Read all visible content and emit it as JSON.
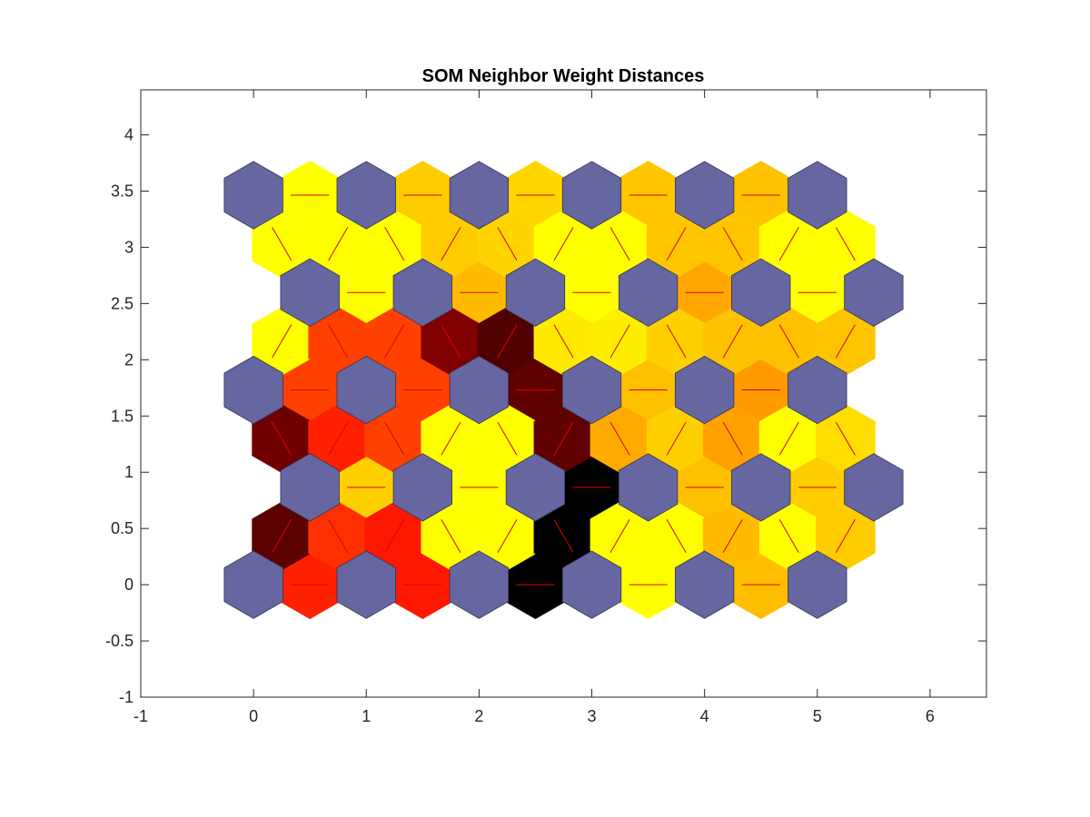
{
  "chart_data": {
    "type": "heatmap",
    "title": "SOM Neighbor Weight Distances",
    "xlabel": "",
    "ylabel": "",
    "xlim": [
      -1,
      6.5
    ],
    "ylim": [
      -1,
      4.4
    ],
    "x_ticks": [
      -1,
      0,
      1,
      2,
      3,
      4,
      5,
      6
    ],
    "x_tick_labels": [
      "-1",
      "0",
      "1",
      "2",
      "3",
      "4",
      "5",
      "6"
    ],
    "y_ticks": [
      -1,
      -0.5,
      0,
      0.5,
      1,
      1.5,
      2,
      2.5,
      3,
      3.5,
      4
    ],
    "y_tick_labels": [
      "-1",
      "-0.5",
      "0",
      "0.5",
      "1",
      "1.5",
      "2",
      "2.5",
      "3",
      "3.5",
      "4"
    ],
    "grid": false,
    "colormap": "hot",
    "neuron_color": "#6666a0",
    "connection_line_color": "#e00000",
    "neurons": [
      [
        0,
        0
      ],
      [
        1,
        0
      ],
      [
        2,
        0
      ],
      [
        3,
        0
      ],
      [
        4,
        0
      ],
      [
        5,
        0
      ],
      [
        0.5,
        0.866
      ],
      [
        1.5,
        0.866
      ],
      [
        2.5,
        0.866
      ],
      [
        3.5,
        0.866
      ],
      [
        4.5,
        0.866
      ],
      [
        5.5,
        0.866
      ],
      [
        0,
        1.732
      ],
      [
        1,
        1.732
      ],
      [
        2,
        1.732
      ],
      [
        3,
        1.732
      ],
      [
        4,
        1.732
      ],
      [
        5,
        1.732
      ],
      [
        0.5,
        2.598
      ],
      [
        1.5,
        2.598
      ],
      [
        2.5,
        2.598
      ],
      [
        3.5,
        2.598
      ],
      [
        4.5,
        2.598
      ],
      [
        5.5,
        2.598
      ],
      [
        0,
        3.464
      ],
      [
        1,
        3.464
      ],
      [
        2,
        3.464
      ],
      [
        3,
        3.464
      ],
      [
        4,
        3.464
      ],
      [
        5,
        3.464
      ]
    ],
    "neighbor_distances": [
      {
        "x": 0.5,
        "y": 0.0,
        "color": "#ff2000"
      },
      {
        "x": 1.5,
        "y": 0.0,
        "color": "#ff1800"
      },
      {
        "x": 2.5,
        "y": 0.0,
        "color": "#000000"
      },
      {
        "x": 3.5,
        "y": 0.0,
        "color": "#ffff00"
      },
      {
        "x": 4.5,
        "y": 0.0,
        "color": "#ffbf00"
      },
      {
        "x": 1.0,
        "y": 0.866,
        "color": "#ffd000"
      },
      {
        "x": 2.0,
        "y": 0.866,
        "color": "#ffff00"
      },
      {
        "x": 3.0,
        "y": 0.866,
        "color": "#000000"
      },
      {
        "x": 4.0,
        "y": 0.866,
        "color": "#ffc000"
      },
      {
        "x": 5.0,
        "y": 0.866,
        "color": "#ffcc00"
      },
      {
        "x": 0.5,
        "y": 1.732,
        "color": "#ff4000"
      },
      {
        "x": 1.5,
        "y": 1.732,
        "color": "#ff4000"
      },
      {
        "x": 2.5,
        "y": 1.732,
        "color": "#600000"
      },
      {
        "x": 3.5,
        "y": 1.732,
        "color": "#ffc000"
      },
      {
        "x": 4.5,
        "y": 1.732,
        "color": "#ff9a00"
      },
      {
        "x": 1.0,
        "y": 2.598,
        "color": "#ffff00"
      },
      {
        "x": 2.0,
        "y": 2.598,
        "color": "#ffbb00"
      },
      {
        "x": 3.0,
        "y": 2.598,
        "color": "#ffff00"
      },
      {
        "x": 4.0,
        "y": 2.598,
        "color": "#ffa600"
      },
      {
        "x": 5.0,
        "y": 2.598,
        "color": "#ffff00"
      },
      {
        "x": 0.5,
        "y": 3.464,
        "color": "#ffff00"
      },
      {
        "x": 1.5,
        "y": 3.464,
        "color": "#ffcc00"
      },
      {
        "x": 2.5,
        "y": 3.464,
        "color": "#ffd600"
      },
      {
        "x": 3.5,
        "y": 3.464,
        "color": "#ffc600"
      },
      {
        "x": 4.5,
        "y": 3.464,
        "color": "#ffc200"
      },
      {
        "x": 0.25,
        "y": 0.433,
        "color": "#5c0000"
      },
      {
        "x": 0.75,
        "y": 0.433,
        "color": "#ff3000"
      },
      {
        "x": 1.25,
        "y": 0.433,
        "color": "#ff1800"
      },
      {
        "x": 1.75,
        "y": 0.433,
        "color": "#ffff00"
      },
      {
        "x": 2.25,
        "y": 0.433,
        "color": "#ffff00"
      },
      {
        "x": 2.75,
        "y": 0.433,
        "color": "#000000"
      },
      {
        "x": 3.25,
        "y": 0.433,
        "color": "#ffff00"
      },
      {
        "x": 3.75,
        "y": 0.433,
        "color": "#ffff00"
      },
      {
        "x": 4.25,
        "y": 0.433,
        "color": "#ffbb00"
      },
      {
        "x": 4.75,
        "y": 0.433,
        "color": "#ffff00"
      },
      {
        "x": 5.25,
        "y": 0.433,
        "color": "#ffcc00"
      },
      {
        "x": 0.25,
        "y": 1.299,
        "color": "#700000"
      },
      {
        "x": 0.75,
        "y": 1.299,
        "color": "#ff2000"
      },
      {
        "x": 1.25,
        "y": 1.299,
        "color": "#ff4000"
      },
      {
        "x": 1.75,
        "y": 1.299,
        "color": "#ffff00"
      },
      {
        "x": 2.25,
        "y": 1.299,
        "color": "#ffff00"
      },
      {
        "x": 2.75,
        "y": 1.299,
        "color": "#600000"
      },
      {
        "x": 3.25,
        "y": 1.299,
        "color": "#ffaa00"
      },
      {
        "x": 3.75,
        "y": 1.299,
        "color": "#ffd000"
      },
      {
        "x": 4.25,
        "y": 1.299,
        "color": "#ffa200"
      },
      {
        "x": 4.75,
        "y": 1.299,
        "color": "#ffff00"
      },
      {
        "x": 5.25,
        "y": 1.299,
        "color": "#ffdd00"
      },
      {
        "x": 0.25,
        "y": 2.165,
        "color": "#ffff00"
      },
      {
        "x": 0.75,
        "y": 2.165,
        "color": "#ff4000"
      },
      {
        "x": 1.25,
        "y": 2.165,
        "color": "#ff4000"
      },
      {
        "x": 1.75,
        "y": 2.165,
        "color": "#800000"
      },
      {
        "x": 2.25,
        "y": 2.165,
        "color": "#500000"
      },
      {
        "x": 2.75,
        "y": 2.165,
        "color": "#ffea00"
      },
      {
        "x": 3.25,
        "y": 2.165,
        "color": "#ffee00"
      },
      {
        "x": 3.75,
        "y": 2.165,
        "color": "#ffd000"
      },
      {
        "x": 4.25,
        "y": 2.165,
        "color": "#ffc200"
      },
      {
        "x": 4.75,
        "y": 2.165,
        "color": "#ffc000"
      },
      {
        "x": 5.25,
        "y": 2.165,
        "color": "#ffc400"
      },
      {
        "x": 0.25,
        "y": 3.031,
        "color": "#ffff00"
      },
      {
        "x": 0.75,
        "y": 3.031,
        "color": "#ffff00"
      },
      {
        "x": 1.25,
        "y": 3.031,
        "color": "#ffff00"
      },
      {
        "x": 1.75,
        "y": 3.031,
        "color": "#ffcc00"
      },
      {
        "x": 2.25,
        "y": 3.031,
        "color": "#ffd400"
      },
      {
        "x": 2.75,
        "y": 3.031,
        "color": "#ffff00"
      },
      {
        "x": 3.25,
        "y": 3.031,
        "color": "#ffff00"
      },
      {
        "x": 3.75,
        "y": 3.031,
        "color": "#ffc600"
      },
      {
        "x": 4.25,
        "y": 3.031,
        "color": "#ffc600"
      },
      {
        "x": 4.75,
        "y": 3.031,
        "color": "#ffff00"
      },
      {
        "x": 5.25,
        "y": 3.031,
        "color": "#ffff00"
      }
    ]
  }
}
